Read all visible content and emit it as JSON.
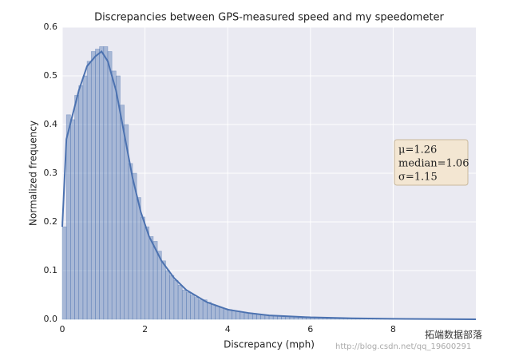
{
  "chart_data": {
    "type": "histogram",
    "title": "Discrepancies between GPS-measured speed and my speedometer",
    "xlabel": "Discrepancy (mph)",
    "ylabel": "Normalized frequency",
    "bins": [
      0,
      0.1,
      0.2,
      0.3,
      0.4,
      0.5,
      0.6,
      0.7,
      0.8,
      0.9,
      1.0,
      1.1,
      1.2,
      1.3,
      1.4,
      1.5,
      1.6,
      1.7,
      1.8,
      1.9,
      2.0,
      2.1,
      2.2,
      2.3,
      2.4,
      2.5,
      2.6,
      2.7,
      2.8,
      2.9,
      3.0,
      3.1,
      3.2,
      3.3,
      3.4,
      3.5,
      3.6,
      3.7,
      3.8,
      3.9,
      4.0,
      4.1,
      4.2,
      4.3,
      4.4,
      4.5,
      4.6,
      4.7,
      4.8,
      4.9,
      5.0,
      5.1,
      5.2,
      5.3,
      5.4,
      5.5,
      5.6,
      5.7,
      5.8,
      5.9,
      6.0,
      6.1,
      6.2,
      6.3,
      6.4,
      6.5,
      6.6,
      6.7,
      6.8,
      6.9,
      7.0,
      7.1,
      7.2,
      7.3,
      7.4,
      7.5,
      7.6,
      7.7,
      7.8,
      7.9,
      8.0
    ],
    "counts": [
      0.19,
      0.42,
      0.41,
      0.46,
      0.48,
      0.5,
      0.53,
      0.55,
      0.555,
      0.56,
      0.56,
      0.55,
      0.51,
      0.5,
      0.44,
      0.4,
      0.32,
      0.3,
      0.25,
      0.21,
      0.19,
      0.17,
      0.16,
      0.14,
      0.12,
      0.1,
      0.09,
      0.08,
      0.07,
      0.06,
      0.055,
      0.05,
      0.045,
      0.04,
      0.04,
      0.035,
      0.03,
      0.027,
      0.024,
      0.022,
      0.02,
      0.018,
      0.017,
      0.015,
      0.014,
      0.013,
      0.012,
      0.011,
      0.01,
      0.009,
      0.008,
      0.007,
      0.007,
      0.006,
      0.006,
      0.005,
      0.005,
      0.004,
      0.004,
      0.004,
      0.003,
      0.003,
      0.003,
      0.003,
      0.002,
      0.002,
      0.002,
      0.002,
      0.002,
      0.002,
      0.001,
      0.001,
      0.001,
      0.001,
      0.001,
      0.001,
      0.001,
      0.001,
      0.001,
      0.001
    ],
    "color": "#4c72b0",
    "kde": {
      "color": "#4c72b0",
      "x": [
        0,
        0.1,
        0.25,
        0.4,
        0.6,
        0.8,
        0.95,
        1.1,
        1.3,
        1.5,
        1.7,
        1.9,
        2.1,
        2.4,
        2.7,
        3.0,
        3.5,
        4.0,
        4.5,
        5.0,
        6.0,
        7.0,
        8.0,
        10
      ],
      "values": [
        0.19,
        0.37,
        0.42,
        0.47,
        0.52,
        0.54,
        0.55,
        0.53,
        0.47,
        0.38,
        0.29,
        0.22,
        0.17,
        0.12,
        0.085,
        0.06,
        0.035,
        0.02,
        0.013,
        0.008,
        0.004,
        0.002,
        0.001,
        0
      ]
    },
    "xlim": [
      0,
      10
    ],
    "ylim": [
      0,
      0.6
    ],
    "xticks": [
      0,
      2,
      4,
      6,
      8
    ],
    "yticks": [
      {
        "value": 0,
        "label": "0.0"
      },
      0.1,
      0.2,
      0.3,
      0.4,
      0.5,
      0.6
    ],
    "grid": true,
    "annotation": [
      "μ=1.26",
      "median=1.06",
      "σ=1.15"
    ],
    "watermark": [
      "拓端数据部落",
      "http://blog.csdn.net/qq_19600291"
    ]
  }
}
